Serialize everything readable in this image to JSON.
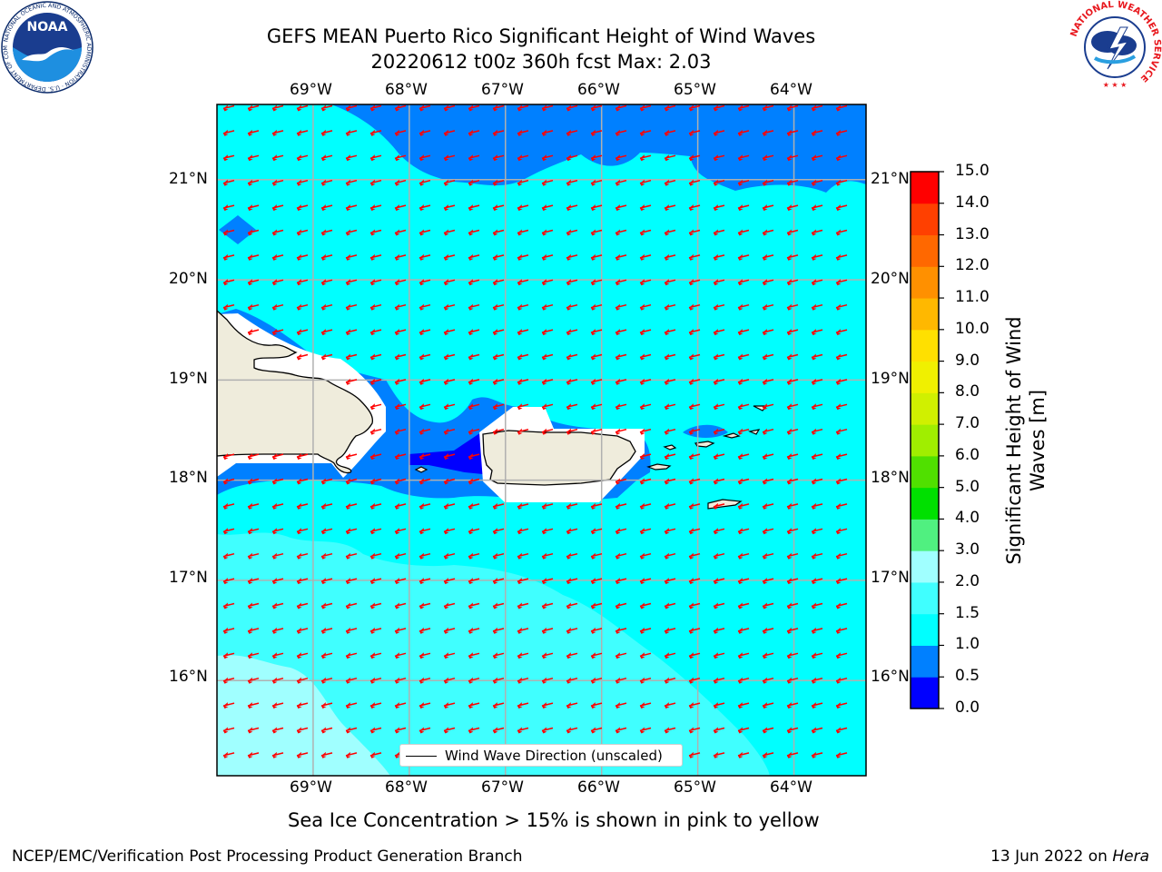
{
  "title": {
    "line1": "GEFS MEAN Puerto Rico Significant Height of Wind Waves",
    "line2": "20220612 t00z 360h fcst   Max: 2.03"
  },
  "map": {
    "lon_ticks": [
      "69°W",
      "68°W",
      "67°W",
      "66°W",
      "65°W",
      "64°W"
    ],
    "lat_ticks": [
      "21°N",
      "20°N",
      "19°N",
      "18°N",
      "17°N",
      "16°N"
    ],
    "lon_range": [
      -70.0,
      -63.25
    ],
    "lat_range": [
      15.05,
      21.75
    ],
    "legend_label": "Wind Wave Direction (unscaled)",
    "arrow_color": "#ff0000",
    "land_color": "#efecdc",
    "colors": {
      "c0_05": "#0000ff",
      "c05_1": "#0080ff",
      "c1_15": "#00ffff",
      "c15_2": "#40ffff",
      "c2_3": "#a0ffff"
    }
  },
  "colorbar": {
    "label_line1": "Significant Height of Wind",
    "label_line2": "Waves [m]",
    "ticks": [
      "15.0",
      "14.0",
      "13.0",
      "12.0",
      "11.0",
      "10.0",
      "9.0",
      "8.0",
      "7.0",
      "6.0",
      "5.0",
      "4.0",
      "3.0",
      "2.0",
      "1.5",
      "1.0",
      "0.5",
      "0.0"
    ],
    "colors": [
      "#0000ff",
      "#0080ff",
      "#00ffff",
      "#40ffff",
      "#a0ffff",
      "#50f080",
      "#00e000",
      "#50e000",
      "#a0ee00",
      "#d0f000",
      "#f0f000",
      "#ffe000",
      "#ffb800",
      "#ff9000",
      "#ff6800",
      "#ff4000",
      "#ff0000"
    ]
  },
  "footer": {
    "note": "Sea Ice Concentration > 15% is shown in pink to yellow",
    "left": "NCEP/EMC/Verification Post Processing Product Generation Branch",
    "date": "13 Jun 2022 on ",
    "machine": "Hera"
  },
  "logos": {
    "noaa_text": "NOAA",
    "noaa_ring": "NATIONAL OCEANIC AND ATMOSPHERIC ADMINISTRATION · U.S. DEPARTMENT OF COMMERCE",
    "nws_ring": "NATIONAL WEATHER SERVICE"
  }
}
